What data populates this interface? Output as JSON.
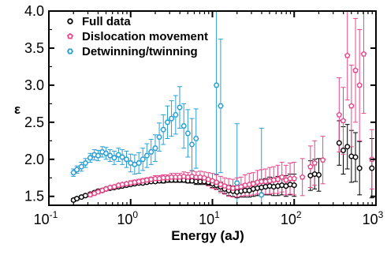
{
  "chart_data": {
    "type": "scatter",
    "xlabel": "Energy (aJ)",
    "ylabel": "ε",
    "xscale": "log",
    "xlim": [
      0.1,
      1000
    ],
    "ylim": [
      1.38,
      4.0
    ],
    "x_ticks": [
      0.1,
      1,
      10,
      100,
      1000
    ],
    "x_tick_labels": [
      {
        "base": "10",
        "exp": "-1"
      },
      {
        "base": "10",
        "exp": "0"
      },
      {
        "base": "10",
        "exp": "1"
      },
      {
        "base": "10",
        "exp": "2"
      },
      {
        "base": "10",
        "exp": "3"
      }
    ],
    "y_ticks": [
      1.5,
      2.0,
      2.5,
      3.0,
      3.5,
      4.0
    ],
    "y_tick_labels": [
      "1.5",
      "2.0",
      "2.5",
      "3.0",
      "3.5",
      "4.0"
    ],
    "legend_position": "top-left",
    "series": [
      {
        "name": "Full data",
        "marker": "circle",
        "color": "#000000",
        "points": [
          [
            0.2,
            1.45,
            0.02
          ],
          [
            0.22,
            1.47,
            0.02
          ],
          [
            0.25,
            1.49,
            0.02
          ],
          [
            0.28,
            1.51,
            0.02
          ],
          [
            0.32,
            1.53,
            0.02
          ],
          [
            0.36,
            1.55,
            0.02
          ],
          [
            0.4,
            1.57,
            0.02
          ],
          [
            0.45,
            1.58,
            0.02
          ],
          [
            0.5,
            1.6,
            0.02
          ],
          [
            0.56,
            1.61,
            0.02
          ],
          [
            0.63,
            1.62,
            0.02
          ],
          [
            0.71,
            1.63,
            0.02
          ],
          [
            0.79,
            1.64,
            0.02
          ],
          [
            0.89,
            1.65,
            0.02
          ],
          [
            1.0,
            1.66,
            0.02
          ],
          [
            1.12,
            1.67,
            0.02
          ],
          [
            1.26,
            1.68,
            0.02
          ],
          [
            1.41,
            1.68,
            0.02
          ],
          [
            1.58,
            1.69,
            0.02
          ],
          [
            1.78,
            1.7,
            0.02
          ],
          [
            2.0,
            1.7,
            0.02
          ],
          [
            2.24,
            1.71,
            0.02
          ],
          [
            2.51,
            1.71,
            0.03
          ],
          [
            2.82,
            1.72,
            0.03
          ],
          [
            3.16,
            1.72,
            0.03
          ],
          [
            3.55,
            1.72,
            0.03
          ],
          [
            3.98,
            1.72,
            0.03
          ],
          [
            4.47,
            1.72,
            0.03
          ],
          [
            5.01,
            1.71,
            0.03
          ],
          [
            5.62,
            1.71,
            0.03
          ],
          [
            6.31,
            1.7,
            0.04
          ],
          [
            7.08,
            1.7,
            0.04
          ],
          [
            7.94,
            1.7,
            0.04
          ],
          [
            8.91,
            1.69,
            0.04
          ],
          [
            10.0,
            1.67,
            0.05
          ],
          [
            11.2,
            1.65,
            0.05
          ],
          [
            12.6,
            1.63,
            0.06
          ],
          [
            14.1,
            1.6,
            0.06
          ],
          [
            15.8,
            1.58,
            0.07
          ],
          [
            17.8,
            1.57,
            0.07
          ],
          [
            20.0,
            1.56,
            0.08
          ],
          [
            22.4,
            1.57,
            0.08
          ],
          [
            25.1,
            1.58,
            0.09
          ],
          [
            28.2,
            1.58,
            0.09
          ],
          [
            31.6,
            1.6,
            0.1
          ],
          [
            35.5,
            1.61,
            0.1
          ],
          [
            39.8,
            1.62,
            0.11
          ],
          [
            44.7,
            1.63,
            0.11
          ],
          [
            50.1,
            1.64,
            0.12
          ],
          [
            56.2,
            1.63,
            0.12
          ],
          [
            63.1,
            1.64,
            0.13
          ],
          [
            70.8,
            1.65,
            0.13
          ],
          [
            79.4,
            1.64,
            0.14
          ],
          [
            89.1,
            1.66,
            0.14
          ],
          [
            100.0,
            1.65,
            0.15
          ],
          [
            158.0,
            1.78,
            0.2
          ],
          [
            178.0,
            1.8,
            0.2
          ],
          [
            200.0,
            1.79,
            0.22
          ],
          [
            355.0,
            2.22,
            0.3
          ],
          [
            398.0,
            2.12,
            0.32
          ],
          [
            447.0,
            2.17,
            0.3
          ],
          [
            501.0,
            2.04,
            0.35
          ],
          [
            562.0,
            2.03,
            0.33
          ],
          [
            630.0,
            1.88,
            0.36
          ],
          [
            891.0,
            1.88,
            0.4
          ]
        ]
      },
      {
        "name": "Dislocation movement",
        "marker": "pentagon",
        "color": "#e8488a",
        "points": [
          [
            0.32,
            1.52,
            0.02
          ],
          [
            0.36,
            1.54,
            0.02
          ],
          [
            0.4,
            1.56,
            0.02
          ],
          [
            0.45,
            1.58,
            0.02
          ],
          [
            0.5,
            1.6,
            0.02
          ],
          [
            0.56,
            1.62,
            0.02
          ],
          [
            0.63,
            1.63,
            0.02
          ],
          [
            0.71,
            1.65,
            0.02
          ],
          [
            0.79,
            1.66,
            0.02
          ],
          [
            0.89,
            1.67,
            0.02
          ],
          [
            1.0,
            1.68,
            0.03
          ],
          [
            1.12,
            1.69,
            0.03
          ],
          [
            1.26,
            1.7,
            0.03
          ],
          [
            1.41,
            1.71,
            0.03
          ],
          [
            1.58,
            1.72,
            0.03
          ],
          [
            1.78,
            1.73,
            0.03
          ],
          [
            2.0,
            1.74,
            0.04
          ],
          [
            2.24,
            1.74,
            0.04
          ],
          [
            2.51,
            1.75,
            0.04
          ],
          [
            2.82,
            1.75,
            0.04
          ],
          [
            3.16,
            1.76,
            0.05
          ],
          [
            3.55,
            1.76,
            0.05
          ],
          [
            3.98,
            1.76,
            0.05
          ],
          [
            4.47,
            1.77,
            0.06
          ],
          [
            5.01,
            1.76,
            0.06
          ],
          [
            5.62,
            1.77,
            0.07
          ],
          [
            6.31,
            1.76,
            0.07
          ],
          [
            7.08,
            1.76,
            0.08
          ],
          [
            7.94,
            1.75,
            0.08
          ],
          [
            8.91,
            1.73,
            0.09
          ],
          [
            10.0,
            1.71,
            0.1
          ],
          [
            11.2,
            1.69,
            0.1
          ],
          [
            12.6,
            1.66,
            0.11
          ],
          [
            14.1,
            1.64,
            0.11
          ],
          [
            15.8,
            1.62,
            0.12
          ],
          [
            17.8,
            1.61,
            0.12
          ],
          [
            20.0,
            1.62,
            0.13
          ],
          [
            22.4,
            1.63,
            0.13
          ],
          [
            25.1,
            1.65,
            0.14
          ],
          [
            28.2,
            1.66,
            0.15
          ],
          [
            31.6,
            1.67,
            0.15
          ],
          [
            35.5,
            1.69,
            0.16
          ],
          [
            39.8,
            1.7,
            0.16
          ],
          [
            44.7,
            1.7,
            0.17
          ],
          [
            50.1,
            1.71,
            0.18
          ],
          [
            56.2,
            1.72,
            0.18
          ],
          [
            63.1,
            1.73,
            0.19
          ],
          [
            70.8,
            1.76,
            0.2
          ],
          [
            79.4,
            1.72,
            0.2
          ],
          [
            89.1,
            1.74,
            0.21
          ],
          [
            100.0,
            1.74,
            0.22
          ],
          [
            126.0,
            1.76,
            0.25
          ],
          [
            158.0,
            1.9,
            0.28
          ],
          [
            178.0,
            1.95,
            0.3
          ],
          [
            224.0,
            1.99,
            0.32
          ],
          [
            355.0,
            2.6,
            0.5
          ],
          [
            398.0,
            2.52,
            0.45
          ],
          [
            447.0,
            3.4,
            0.6
          ],
          [
            501.0,
            2.72,
            0.55
          ],
          [
            562.0,
            3.2,
            0.7
          ],
          [
            630.0,
            3.0,
            0.75
          ],
          [
            708.0,
            3.42,
            0.8
          ],
          [
            891.0,
            2.0,
            0.4
          ]
        ]
      },
      {
        "name": "Detwinning/twinning",
        "marker": "hexagon",
        "color": "#2a9fd6",
        "points": [
          [
            0.2,
            1.82,
            0.05
          ],
          [
            0.22,
            1.86,
            0.05
          ],
          [
            0.25,
            1.9,
            0.06
          ],
          [
            0.28,
            1.95,
            0.06
          ],
          [
            0.32,
            2.02,
            0.06
          ],
          [
            0.36,
            2.06,
            0.07
          ],
          [
            0.4,
            2.05,
            0.07
          ],
          [
            0.45,
            2.1,
            0.07
          ],
          [
            0.5,
            2.08,
            0.08
          ],
          [
            0.56,
            2.05,
            0.08
          ],
          [
            0.63,
            2.02,
            0.09
          ],
          [
            0.71,
            2.06,
            0.09
          ],
          [
            0.79,
            2.03,
            0.1
          ],
          [
            0.89,
            2.0,
            0.11
          ],
          [
            1.0,
            1.95,
            0.12
          ],
          [
            1.12,
            1.93,
            0.13
          ],
          [
            1.26,
            1.95,
            0.14
          ],
          [
            1.41,
            2.0,
            0.15
          ],
          [
            1.58,
            2.05,
            0.16
          ],
          [
            1.78,
            2.1,
            0.17
          ],
          [
            2.0,
            2.15,
            0.18
          ],
          [
            2.24,
            2.3,
            0.19
          ],
          [
            2.51,
            2.4,
            0.2
          ],
          [
            2.82,
            2.5,
            0.22
          ],
          [
            3.16,
            2.55,
            0.24
          ],
          [
            3.55,
            2.6,
            0.26
          ],
          [
            3.98,
            2.7,
            0.28
          ],
          [
            4.47,
            2.45,
            0.3
          ],
          [
            5.01,
            2.35,
            0.32
          ],
          [
            5.62,
            2.2,
            0.35
          ],
          [
            6.31,
            2.28,
            0.4
          ],
          [
            11.2,
            3.0,
            1.2
          ],
          [
            12.6,
            2.72,
            0.9
          ],
          [
            20.0,
            1.68,
            0.8
          ],
          [
            39.8,
            1.52,
            0.9
          ]
        ]
      }
    ]
  }
}
